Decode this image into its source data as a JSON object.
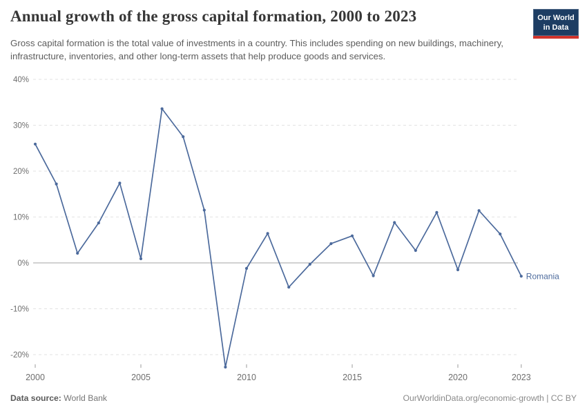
{
  "header": {
    "title": "Annual growth of the gross capital formation, 2000 to 2023",
    "subtitle": "Gross capital formation is the total value of investments in a country. This includes spending on new buildings, machinery, infrastructure, inventories, and other long-term assets that help produce goods and services.",
    "logo": {
      "line1": "Our World",
      "line2": "in Data",
      "bg": "#1d3d63",
      "accent": "#d0342c"
    }
  },
  "chart_data": {
    "type": "line",
    "title": "Annual growth of the gross capital formation, 2000 to 2023",
    "xlabel": "",
    "ylabel": "",
    "unit": "%",
    "x": [
      2000,
      2001,
      2002,
      2003,
      2004,
      2005,
      2006,
      2007,
      2008,
      2009,
      2010,
      2011,
      2012,
      2013,
      2014,
      2015,
      2016,
      2017,
      2018,
      2019,
      2020,
      2021,
      2022,
      2023
    ],
    "series": [
      {
        "name": "Romania",
        "color": "#4c6a9c",
        "values": [
          25.9,
          17.2,
          2.1,
          8.7,
          17.4,
          0.9,
          33.6,
          27.5,
          11.5,
          -22.7,
          -1.2,
          6.4,
          -5.3,
          -0.3,
          4.2,
          5.9,
          -2.8,
          8.8,
          2.7,
          11.0,
          -1.5,
          11.4,
          6.3,
          -2.9
        ]
      }
    ],
    "ylim": [
      -25,
      42
    ],
    "yticks": [
      40,
      30,
      20,
      10,
      0,
      -10,
      -20
    ],
    "xticks": [
      2000,
      2005,
      2010,
      2015,
      2020,
      2023
    ],
    "grid": "horizontal-dashed",
    "legend": "end-of-line-label"
  },
  "footer": {
    "source_label": "Data source:",
    "source_value": "World Bank",
    "credit": "OurWorldinData.org/economic-growth | CC BY"
  }
}
